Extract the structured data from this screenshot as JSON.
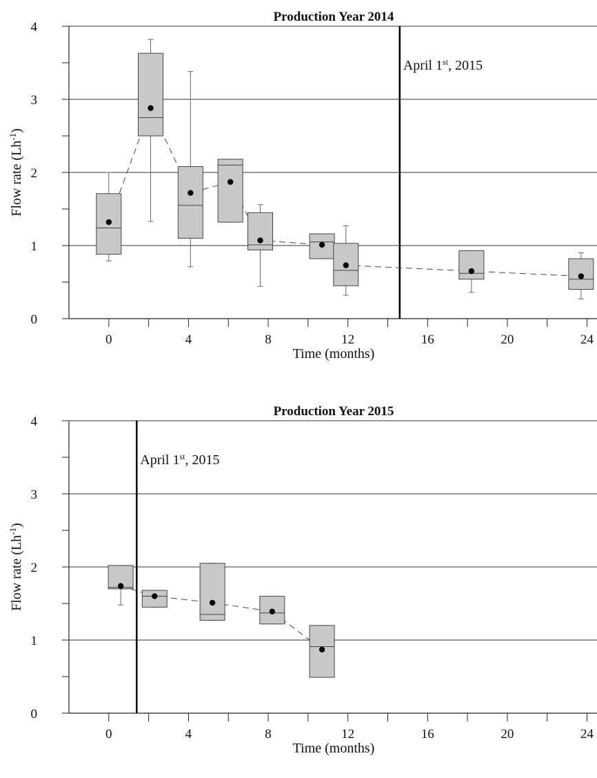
{
  "chart_data": [
    {
      "type": "box",
      "title": "Production Year 2014",
      "xlabel": "Time (months)",
      "ylabel": "Flow rate (Lh",
      "ylabel_sup": "-1",
      "ylabel_close": ")",
      "xlim": [
        -2,
        24.5
      ],
      "ylim": [
        0,
        4
      ],
      "xticks": [
        0,
        4,
        8,
        12,
        16,
        20,
        24
      ],
      "xminor": [
        2,
        6,
        10,
        14,
        18,
        22
      ],
      "yticks": [
        0,
        1,
        2,
        3,
        4
      ],
      "yminor": [
        0.5,
        1.5,
        2.5,
        3.5
      ],
      "grid": "horizontal",
      "annotation": {
        "x": 14.6,
        "label": "April 1",
        "sup": "st",
        "rest": ", 2015"
      },
      "boxes": [
        {
          "x": 0.0,
          "min": 0.79,
          "q1": 0.88,
          "median": 1.24,
          "q3": 1.71,
          "max": 2.0,
          "mean": 1.32
        },
        {
          "x": 2.1,
          "min": 1.33,
          "q1": 2.5,
          "median": 2.75,
          "q3": 3.63,
          "max": 3.82,
          "mean": 2.88
        },
        {
          "x": 4.1,
          "min": 0.71,
          "q1": 1.1,
          "median": 1.55,
          "q3": 2.08,
          "max": 3.38,
          "mean": 1.72
        },
        {
          "x": 6.1,
          "min": 1.32,
          "q1": 1.32,
          "median": 2.1,
          "q3": 2.18,
          "max": 2.18,
          "mean": 1.87
        },
        {
          "x": 7.6,
          "min": 0.44,
          "q1": 0.94,
          "median": 1.01,
          "q3": 1.45,
          "max": 1.56,
          "mean": 1.07
        },
        {
          "x": 10.7,
          "min": 0.82,
          "q1": 0.82,
          "median": 1.05,
          "q3": 1.16,
          "max": 1.16,
          "mean": 1.01
        },
        {
          "x": 11.9,
          "min": 0.32,
          "q1": 0.45,
          "median": 0.66,
          "q3": 1.03,
          "max": 1.27,
          "mean": 0.73
        },
        {
          "x": 18.2,
          "min": 0.36,
          "q1": 0.54,
          "median": 0.62,
          "q3": 0.93,
          "max": 0.93,
          "mean": 0.65
        },
        {
          "x": 23.7,
          "min": 0.27,
          "q1": 0.4,
          "median": 0.54,
          "q3": 0.82,
          "max": 0.9,
          "mean": 0.58
        }
      ]
    },
    {
      "type": "box",
      "title": "Production Year 2015",
      "xlabel": "Time (months)",
      "ylabel": "Flow rate (Lh",
      "ylabel_sup": "-1",
      "ylabel_close": ")",
      "xlim": [
        -2,
        24.5
      ],
      "ylim": [
        0,
        4
      ],
      "xticks": [
        0,
        4,
        8,
        12,
        16,
        20,
        24
      ],
      "xminor": [
        2,
        6,
        10,
        14,
        18,
        22
      ],
      "yticks": [
        0,
        1,
        2,
        3,
        4
      ],
      "yminor": [
        0.5,
        1.5,
        2.5,
        3.5
      ],
      "grid": "horizontal",
      "annotation": {
        "x": 1.4,
        "label": "April 1",
        "sup": "st",
        "rest": ", 2015"
      },
      "boxes": [
        {
          "x": 0.6,
          "min": 1.48,
          "q1": 1.7,
          "median": 1.72,
          "q3": 2.02,
          "max": 2.02,
          "mean": 1.74
        },
        {
          "x": 2.3,
          "min": 1.45,
          "q1": 1.45,
          "median": 1.6,
          "q3": 1.68,
          "max": 1.68,
          "mean": 1.6
        },
        {
          "x": 5.2,
          "min": 1.27,
          "q1": 1.27,
          "median": 1.35,
          "q3": 2.05,
          "max": 2.05,
          "mean": 1.51
        },
        {
          "x": 8.2,
          "min": 1.22,
          "q1": 1.22,
          "median": 1.37,
          "q3": 1.6,
          "max": 1.6,
          "mean": 1.39
        },
        {
          "x": 10.7,
          "min": 0.49,
          "q1": 0.49,
          "median": 0.91,
          "q3": 1.2,
          "max": 1.2,
          "mean": 0.87
        }
      ]
    }
  ]
}
